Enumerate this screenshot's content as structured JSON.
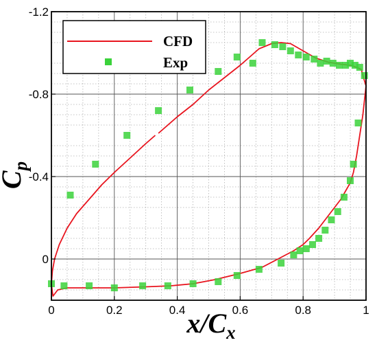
{
  "chart_data": {
    "type": "line",
    "title": "",
    "xlabel": {
      "main": "x/C",
      "sub": "x"
    },
    "ylabel": {
      "main": "C",
      "sub": "p"
    },
    "xlim": [
      0,
      1
    ],
    "ylim": [
      0.2,
      -1.2
    ],
    "y_inverted": true,
    "x_ticks": [
      0,
      0.2,
      0.4,
      0.6,
      0.8,
      1
    ],
    "x_tick_labels": [
      "0",
      "0.2",
      "0.4",
      "0.6",
      "0.8",
      "1"
    ],
    "y_ticks": [
      -1.2,
      -0.8,
      -0.4,
      0
    ],
    "y_tick_labels": [
      "-1.2",
      "-0.8",
      "-0.4",
      "0"
    ],
    "grid": true,
    "minor_grid": "dotted",
    "legend_position": "top-left",
    "series": [
      {
        "name": "CFD",
        "style": "line",
        "color": "#e8141e",
        "segments": [
          [
            [
              0.0,
              0.12
            ],
            [
              0.003,
              0.06
            ],
            [
              0.01,
              0.0
            ],
            [
              0.025,
              -0.07
            ],
            [
              0.05,
              -0.15
            ],
            [
              0.08,
              -0.22
            ],
            [
              0.12,
              -0.29
            ],
            [
              0.16,
              -0.36
            ],
            [
              0.2,
              -0.42
            ],
            [
              0.25,
              -0.49
            ],
            [
              0.3,
              -0.56
            ],
            [
              0.33,
              -0.6
            ]
          ],
          [
            [
              0.34,
              -0.61
            ],
            [
              0.4,
              -0.69
            ],
            [
              0.45,
              -0.75
            ],
            [
              0.5,
              -0.82
            ],
            [
              0.55,
              -0.88
            ],
            [
              0.6,
              -0.94
            ],
            [
              0.63,
              -0.98
            ],
            [
              0.66,
              -1.02
            ],
            [
              0.7,
              -1.045
            ],
            [
              0.73,
              -1.05
            ],
            [
              0.76,
              -1.045
            ],
            [
              0.8,
              -1.01
            ],
            [
              0.84,
              -0.975
            ],
            [
              0.88,
              -0.955
            ],
            [
              0.92,
              -0.945
            ],
            [
              0.95,
              -0.94
            ],
            [
              0.97,
              -0.93
            ],
            [
              0.985,
              -0.92
            ],
            [
              0.992,
              -0.88
            ],
            [
              1.0,
              -0.84
            ]
          ],
          [
            [
              1.0,
              -0.84
            ],
            [
              0.99,
              -0.7
            ],
            [
              0.98,
              -0.6
            ],
            [
              0.97,
              -0.5
            ],
            [
              0.96,
              -0.42
            ],
            [
              0.95,
              -0.37
            ],
            [
              0.92,
              -0.29
            ],
            [
              0.9,
              -0.25
            ],
            [
              0.88,
              -0.21
            ],
            [
              0.85,
              -0.15
            ],
            [
              0.82,
              -0.1
            ],
            [
              0.8,
              -0.07
            ],
            [
              0.77,
              -0.04
            ],
            [
              0.72,
              0.0
            ],
            [
              0.67,
              0.04
            ],
            [
              0.6,
              0.07
            ],
            [
              0.52,
              0.1
            ],
            [
              0.45,
              0.12
            ],
            [
              0.38,
              0.13
            ],
            [
              0.3,
              0.135
            ],
            [
              0.2,
              0.14
            ],
            [
              0.1,
              0.14
            ],
            [
              0.05,
              0.14
            ],
            [
              0.02,
              0.15
            ],
            [
              0.01,
              0.17
            ],
            [
              0.005,
              0.18
            ],
            [
              0.003,
              0.16
            ],
            [
              0.0,
              0.12
            ]
          ]
        ]
      },
      {
        "name": "Exp",
        "style": "marker",
        "marker": "square",
        "color": "#3bd23b",
        "x": [
          0.0,
          0.06,
          0.14,
          0.24,
          0.34,
          0.44,
          0.53,
          0.59,
          0.64,
          0.67,
          0.71,
          0.735,
          0.76,
          0.785,
          0.81,
          0.835,
          0.855,
          0.875,
          0.895,
          0.915,
          0.935,
          0.95,
          0.965,
          0.98,
          0.96,
          0.975,
          0.995,
          0.95,
          0.93,
          0.91,
          0.89,
          0.87,
          0.85,
          0.83,
          0.81,
          0.79,
          0.77,
          0.73,
          0.66,
          0.59,
          0.53,
          0.45,
          0.37,
          0.29,
          0.2,
          0.12,
          0.04
        ],
        "y": [
          0.12,
          -0.31,
          -0.46,
          -0.6,
          -0.72,
          -0.82,
          -0.91,
          -0.98,
          -0.95,
          -1.05,
          -1.04,
          -1.03,
          -1.01,
          -0.99,
          -0.98,
          -0.97,
          -0.95,
          -0.96,
          -0.95,
          -0.94,
          -0.94,
          -0.95,
          -0.94,
          -0.93,
          -0.46,
          -0.66,
          -0.89,
          -0.38,
          -0.3,
          -0.23,
          -0.19,
          -0.14,
          -0.1,
          -0.07,
          -0.05,
          -0.04,
          -0.02,
          0.02,
          0.05,
          0.08,
          0.11,
          0.12,
          0.13,
          0.13,
          0.14,
          0.13,
          0.13
        ]
      },
      {
        "name": "",
        "style": "marker",
        "marker": "square",
        "color": "#3bd23b",
        "x": [
          0.18
        ],
        "y": [
          -0.96
        ]
      }
    ]
  }
}
